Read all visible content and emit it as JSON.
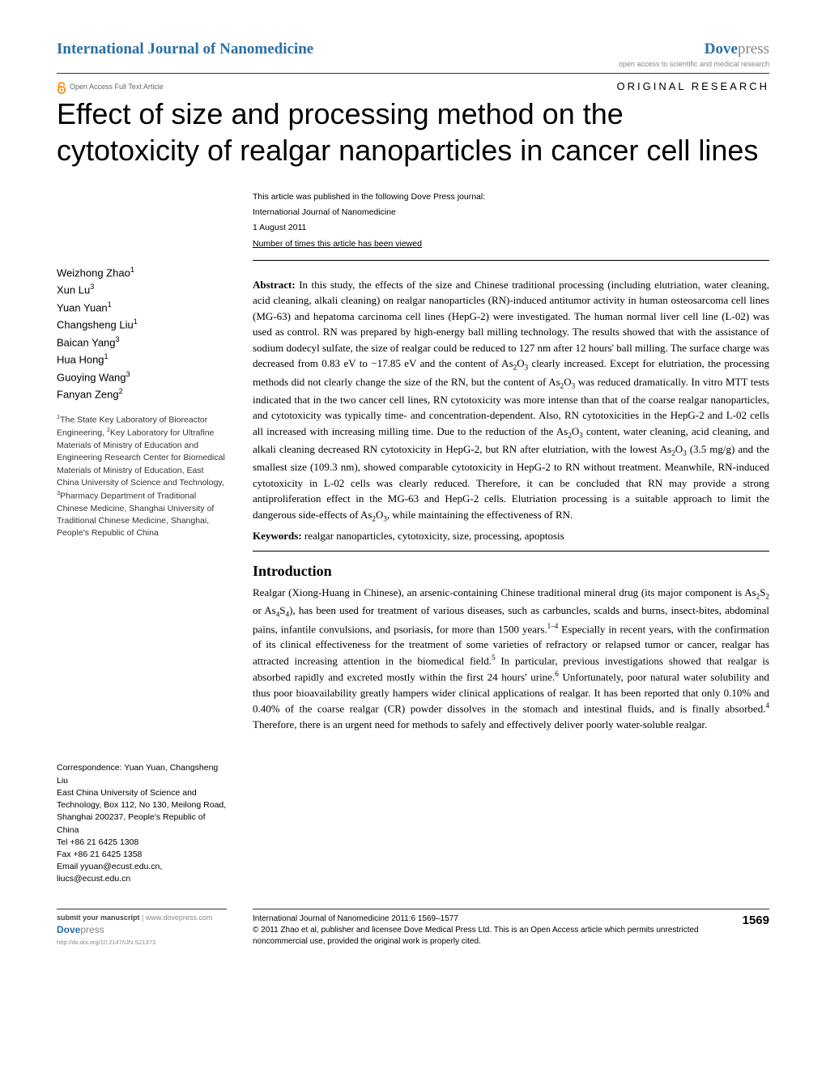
{
  "header": {
    "journal_name": "International Journal of Nanomedicine",
    "brand_dove": "Dove",
    "brand_press": "press",
    "brand_tagline": "open access to scientific and medical research",
    "open_access_label": "Open Access Full Text Article",
    "article_type": "ORIGINAL RESEARCH"
  },
  "title": "Effect of size and processing method on the cytotoxicity of realgar nanoparticles in cancer cell lines",
  "pub_info": {
    "line1": "This article was published in the following Dove Press journal:",
    "line2": "International Journal of Nanomedicine",
    "line3": "1 August 2011",
    "line4": "Number of times this article has been viewed"
  },
  "authors": [
    {
      "name": "Weizhong Zhao",
      "aff": "1"
    },
    {
      "name": "Xun Lu",
      "aff": "3"
    },
    {
      "name": "Yuan Yuan",
      "aff": "1"
    },
    {
      "name": "Changsheng Liu",
      "aff": "1"
    },
    {
      "name": "Baican Yang",
      "aff": "3"
    },
    {
      "name": "Hua Hong",
      "aff": "1"
    },
    {
      "name": "Guoying Wang",
      "aff": "3"
    },
    {
      "name": "Fanyan Zeng",
      "aff": "2"
    }
  ],
  "affiliations_html": "<sup>1</sup>The State Key Laboratory of Bioreactor Engineering, <sup>2</sup>Key Laboratory for Ultrafine Materials of Ministry of Education and Engineering Research Center for Biomedical Materials of Ministry of Education, East China University of Science and Technology, <sup>3</sup>Pharmacy Department of Traditional Chinese Medicine, Shanghai University of Traditional Chinese Medicine, Shanghai, People's Republic of China",
  "correspondence": {
    "label": "Correspondence: Yuan Yuan, Changsheng Liu",
    "address": "East China University of Science and Technology, Box 112, No 130, Meilong Road, Shanghai 200237, People's Republic of China",
    "tel": "Tel +86 21 6425 1308",
    "fax": "Fax +86 21 6425 1358",
    "email": "Email yyuan@ecust.edu.cn, liucs@ecust.edu.cn"
  },
  "abstract_label": "Abstract:",
  "abstract_html": " In this study, the effects of the size and Chinese traditional processing (including elutriation, water cleaning, acid cleaning, alkali cleaning) on realgar nanoparticles (RN)-induced antitumor activity in human osteosarcoma cell lines (MG-63) and hepatoma carcinoma cell lines (HepG-2) were investigated. The human normal liver cell line (L-02) was used as control. RN was prepared by high-energy ball milling technology. The results showed that with the assistance of sodium dodecyl sulfate, the size of realgar could be reduced to 127 nm after 12 hours' ball milling. The surface charge was decreased from 0.83 eV to −17.85 eV and the content of As<sub>2</sub>O<sub>3</sub> clearly increased. Except for elutriation, the processing methods did not clearly change the size of the RN, but the content of As<sub>2</sub>O<sub>3</sub> was reduced dramatically. In vitro MTT tests indicated that in the two cancer cell lines, RN cytotoxicity was more intense than that of the coarse realgar nanoparticles, and cytotoxicity was typically time- and concentration-dependent. Also, RN cytotoxicities in the HepG-2 and L-02 cells all increased with increasing milling time. Due to the reduction of the As<sub>2</sub>O<sub>3</sub> content, water cleaning, acid cleaning, and alkali cleaning decreased RN cytotoxicity in HepG-2, but RN after elutriation, with the lowest As<sub>2</sub>O<sub>3</sub> (3.5 mg/g) and the smallest size (109.3 nm), showed comparable cytotoxicity in HepG-2 to RN without treatment. Meanwhile, RN-induced cytotoxicity in L-02 cells was clearly reduced. Therefore, it can be concluded that RN may provide a strong antiproliferation effect in the MG-63 and HepG-2 cells. Elutriation processing is a suitable approach to limit the dangerous side-effects of As<sub>2</sub>O<sub>3</sub>, while maintaining the effectiveness of RN.",
  "keywords_label": "Keywords:",
  "keywords": " realgar nanoparticles, cytotoxicity, size, processing, apoptosis",
  "intro_heading": "Introduction",
  "intro_html": "Realgar (Xiong-Huang in Chinese), an arsenic-containing Chinese traditional mineral drug (its major component is As<sub>2</sub>S<sub>2</sub> or As<sub>4</sub>S<sub>4</sub>), has been used for treatment of various diseases, such as carbuncles, scalds and burns, insect-bites, abdominal pains, infantile convulsions, and psoriasis, for more than 1500 years.<sup>1–4</sup> Especially in recent years, with the confirmation of its clinical effectiveness for the treatment of some varieties of refractory or relapsed tumor or cancer, realgar has attracted increasing attention in the biomedical field.<sup>5</sup> In particular, previous investigations showed that realgar is absorbed rapidly and excreted mostly within the first 24 hours' urine.<sup>6</sup> Unfortunately, poor natural water solubility and thus poor bioavailability greatly hampers wider clinical applications of realgar. It has been reported that only 0.10% and 0.40% of the coarse realgar (CR) powder dissolves in the stomach and intestinal fluids, and is finally absorbed.<sup>4</sup> Therefore, there is an urgent need for methods to safely and effectively deliver poorly water-soluble realgar.",
  "footer": {
    "submit_label": "submit your manuscript",
    "submit_url": " | www.dovepress.com",
    "doi": "http://dx.doi.org/10.2147/IJN.S21373",
    "citation": "International Journal of Nanomedicine 2011:6 1569–1577",
    "copyright": "© 2011 Zhao et al, publisher and licensee Dove Medical Press Ltd. This is an Open Access article which permits unrestricted noncommercial use, provided the original work is properly cited.",
    "page": "1569"
  },
  "colors": {
    "brand_blue": "#2a6ea5",
    "grey_text": "#888888",
    "oa_orange": "#f68b1f"
  }
}
